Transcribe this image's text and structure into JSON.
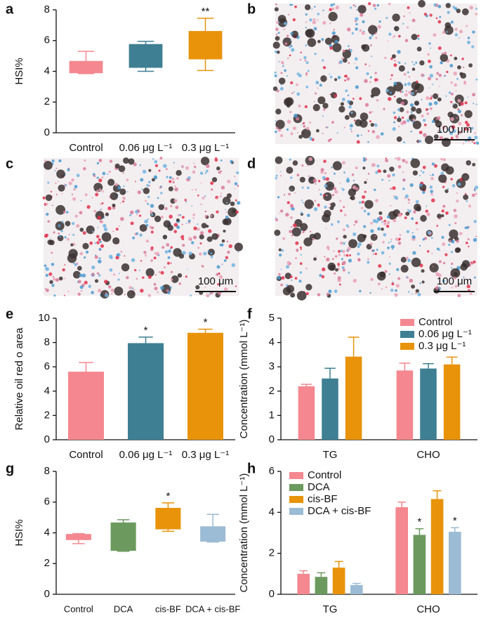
{
  "chart_data": [
    {
      "panel": "a",
      "type": "box",
      "ylabel": "HSI%",
      "categories": [
        "Control",
        "0.06 μg L⁻¹",
        "0.3 μg L⁻¹"
      ],
      "colors": [
        "#f4878f",
        "#3e7f93",
        "#e8930a"
      ],
      "boxes": [
        {
          "min": 3.85,
          "q1": 3.9,
          "median": 3.95,
          "q3": 4.65,
          "max": 5.3
        },
        {
          "min": 4.0,
          "q1": 4.25,
          "median": 4.3,
          "q3": 5.75,
          "max": 5.95
        },
        {
          "min": 4.05,
          "q1": 4.8,
          "median": 4.85,
          "q3": 6.6,
          "max": 7.45
        }
      ],
      "annotations": [
        null,
        null,
        "**"
      ],
      "ylim": [
        0,
        8
      ],
      "yticks": [
        0,
        2,
        4,
        6,
        8
      ]
    },
    {
      "panel": "e",
      "type": "bar",
      "ylabel": "Relative oil red o area",
      "categories": [
        "Control",
        "0.06 μg L⁻¹",
        "0.3 μg L⁻¹"
      ],
      "colors": [
        "#f4878f",
        "#3e7f93",
        "#e8930a"
      ],
      "values": [
        5.6,
        7.95,
        8.8
      ],
      "errors": [
        0.75,
        0.5,
        0.3
      ],
      "annotations": [
        null,
        "*",
        "*"
      ],
      "ylim": [
        0,
        10
      ],
      "yticks": [
        0,
        2,
        4,
        6,
        8,
        10
      ]
    },
    {
      "panel": "f",
      "type": "grouped_bar",
      "ylabel": "Concentration (mmol L⁻¹)",
      "categories": [
        "TG",
        "CHO"
      ],
      "legend": "upper right",
      "series": [
        {
          "name": "Control",
          "color": "#f4878f",
          "values": [
            2.2,
            2.85
          ],
          "errors": [
            0.08,
            0.3
          ]
        },
        {
          "name": "0.06 μg L⁻¹",
          "color": "#3e7f93",
          "values": [
            2.52,
            2.93
          ],
          "errors": [
            0.42,
            0.2
          ]
        },
        {
          "name": "0.3 μg L⁻¹",
          "color": "#e8930a",
          "values": [
            3.42,
            3.1
          ],
          "errors": [
            0.8,
            0.3
          ]
        }
      ],
      "ylim": [
        0,
        5
      ],
      "yticks": [
        0,
        1,
        2,
        3,
        4,
        5
      ]
    },
    {
      "panel": "g",
      "type": "box",
      "ylabel": "HSI%",
      "categories": [
        "Control",
        "DCA",
        "cis-BF",
        "DCA + cis-BF"
      ],
      "colors": [
        "#f4878f",
        "#6c9a5e",
        "#e8930a",
        "#9cbbd4"
      ],
      "boxes": [
        {
          "min": 3.3,
          "q1": 3.55,
          "median": 3.6,
          "q3": 3.9,
          "max": 3.95
        },
        {
          "min": 2.8,
          "q1": 2.85,
          "median": 2.9,
          "q3": 4.65,
          "max": 4.85
        },
        {
          "min": 4.1,
          "q1": 4.25,
          "median": 4.3,
          "q3": 5.6,
          "max": 5.95
        },
        {
          "min": 3.4,
          "q1": 3.45,
          "median": 3.5,
          "q3": 4.4,
          "max": 5.2
        }
      ],
      "annotations": [
        null,
        null,
        "*",
        null
      ],
      "ylim": [
        0,
        8
      ],
      "yticks": [
        0,
        2,
        4,
        6,
        8
      ]
    },
    {
      "panel": "h",
      "type": "grouped_bar",
      "ylabel": "Concentration (mmol L⁻¹)",
      "categories": [
        "TG",
        "CHO"
      ],
      "legend": "upper left",
      "series": [
        {
          "name": "Control",
          "color": "#f4878f",
          "values": [
            1.0,
            4.25
          ],
          "errors": [
            0.15,
            0.25
          ]
        },
        {
          "name": "DCA",
          "color": "#6c9a5e",
          "values": [
            0.85,
            2.9
          ],
          "errors": [
            0.2,
            0.3
          ],
          "annotations": [
            null,
            "*"
          ]
        },
        {
          "name": "cis-BF",
          "color": "#e8930a",
          "values": [
            1.3,
            4.65
          ],
          "errors": [
            0.3,
            0.4
          ]
        },
        {
          "name": "DCA + cis-BF",
          "color": "#9cbbd4",
          "values": [
            0.45,
            3.05
          ],
          "errors": [
            0.08,
            0.2
          ],
          "annotations": [
            null,
            "*"
          ]
        }
      ],
      "ylim": [
        0,
        6
      ],
      "yticks": [
        0,
        2,
        4,
        6
      ]
    }
  ],
  "images": [
    {
      "panel": "b",
      "scale_bar": "100 μm"
    },
    {
      "panel": "c",
      "scale_bar": "100 μm"
    },
    {
      "panel": "d",
      "scale_bar": "100 μm"
    }
  ]
}
